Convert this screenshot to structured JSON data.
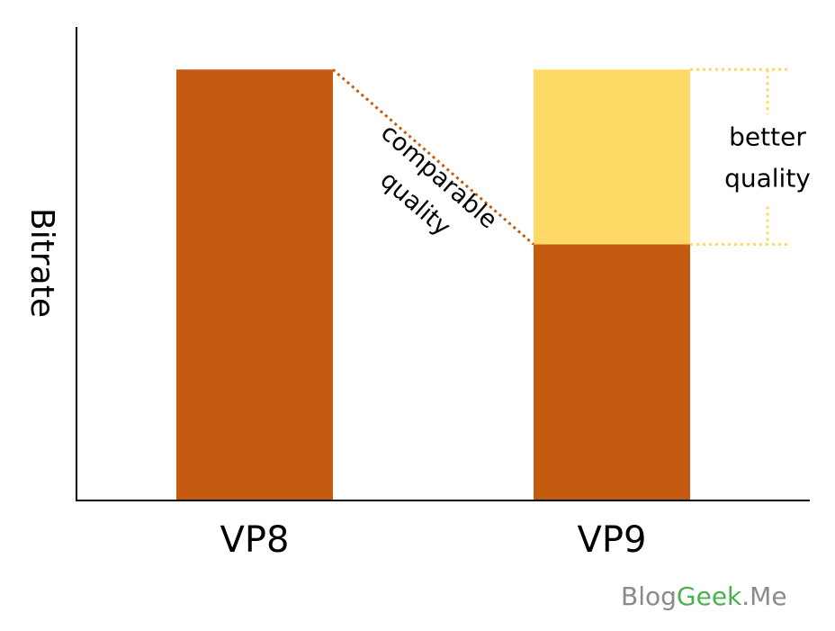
{
  "chart_data": {
    "type": "bar",
    "stacked": true,
    "y_label": "Bitrate",
    "categories": [
      "VP8",
      "VP9"
    ],
    "series": [
      {
        "color": "#c55a11",
        "values": [
          91,
          54
        ]
      },
      {
        "color": "#ffd966",
        "values": [
          null,
          37
        ]
      }
    ],
    "ylim": [
      0,
      100
    ],
    "annotations": [
      {
        "lines": [
          "comparable",
          "quality"
        ],
        "color": "#c55a11"
      },
      {
        "lines": [
          "better",
          "quality"
        ],
        "color": "#ffd966"
      }
    ],
    "watermark": [
      {
        "text": "Blog",
        "color": "#8a8a8a"
      },
      {
        "text": "Geek",
        "color": "#4caf50"
      },
      {
        "text": ".Me",
        "color": "#8a8a8a"
      }
    ]
  }
}
